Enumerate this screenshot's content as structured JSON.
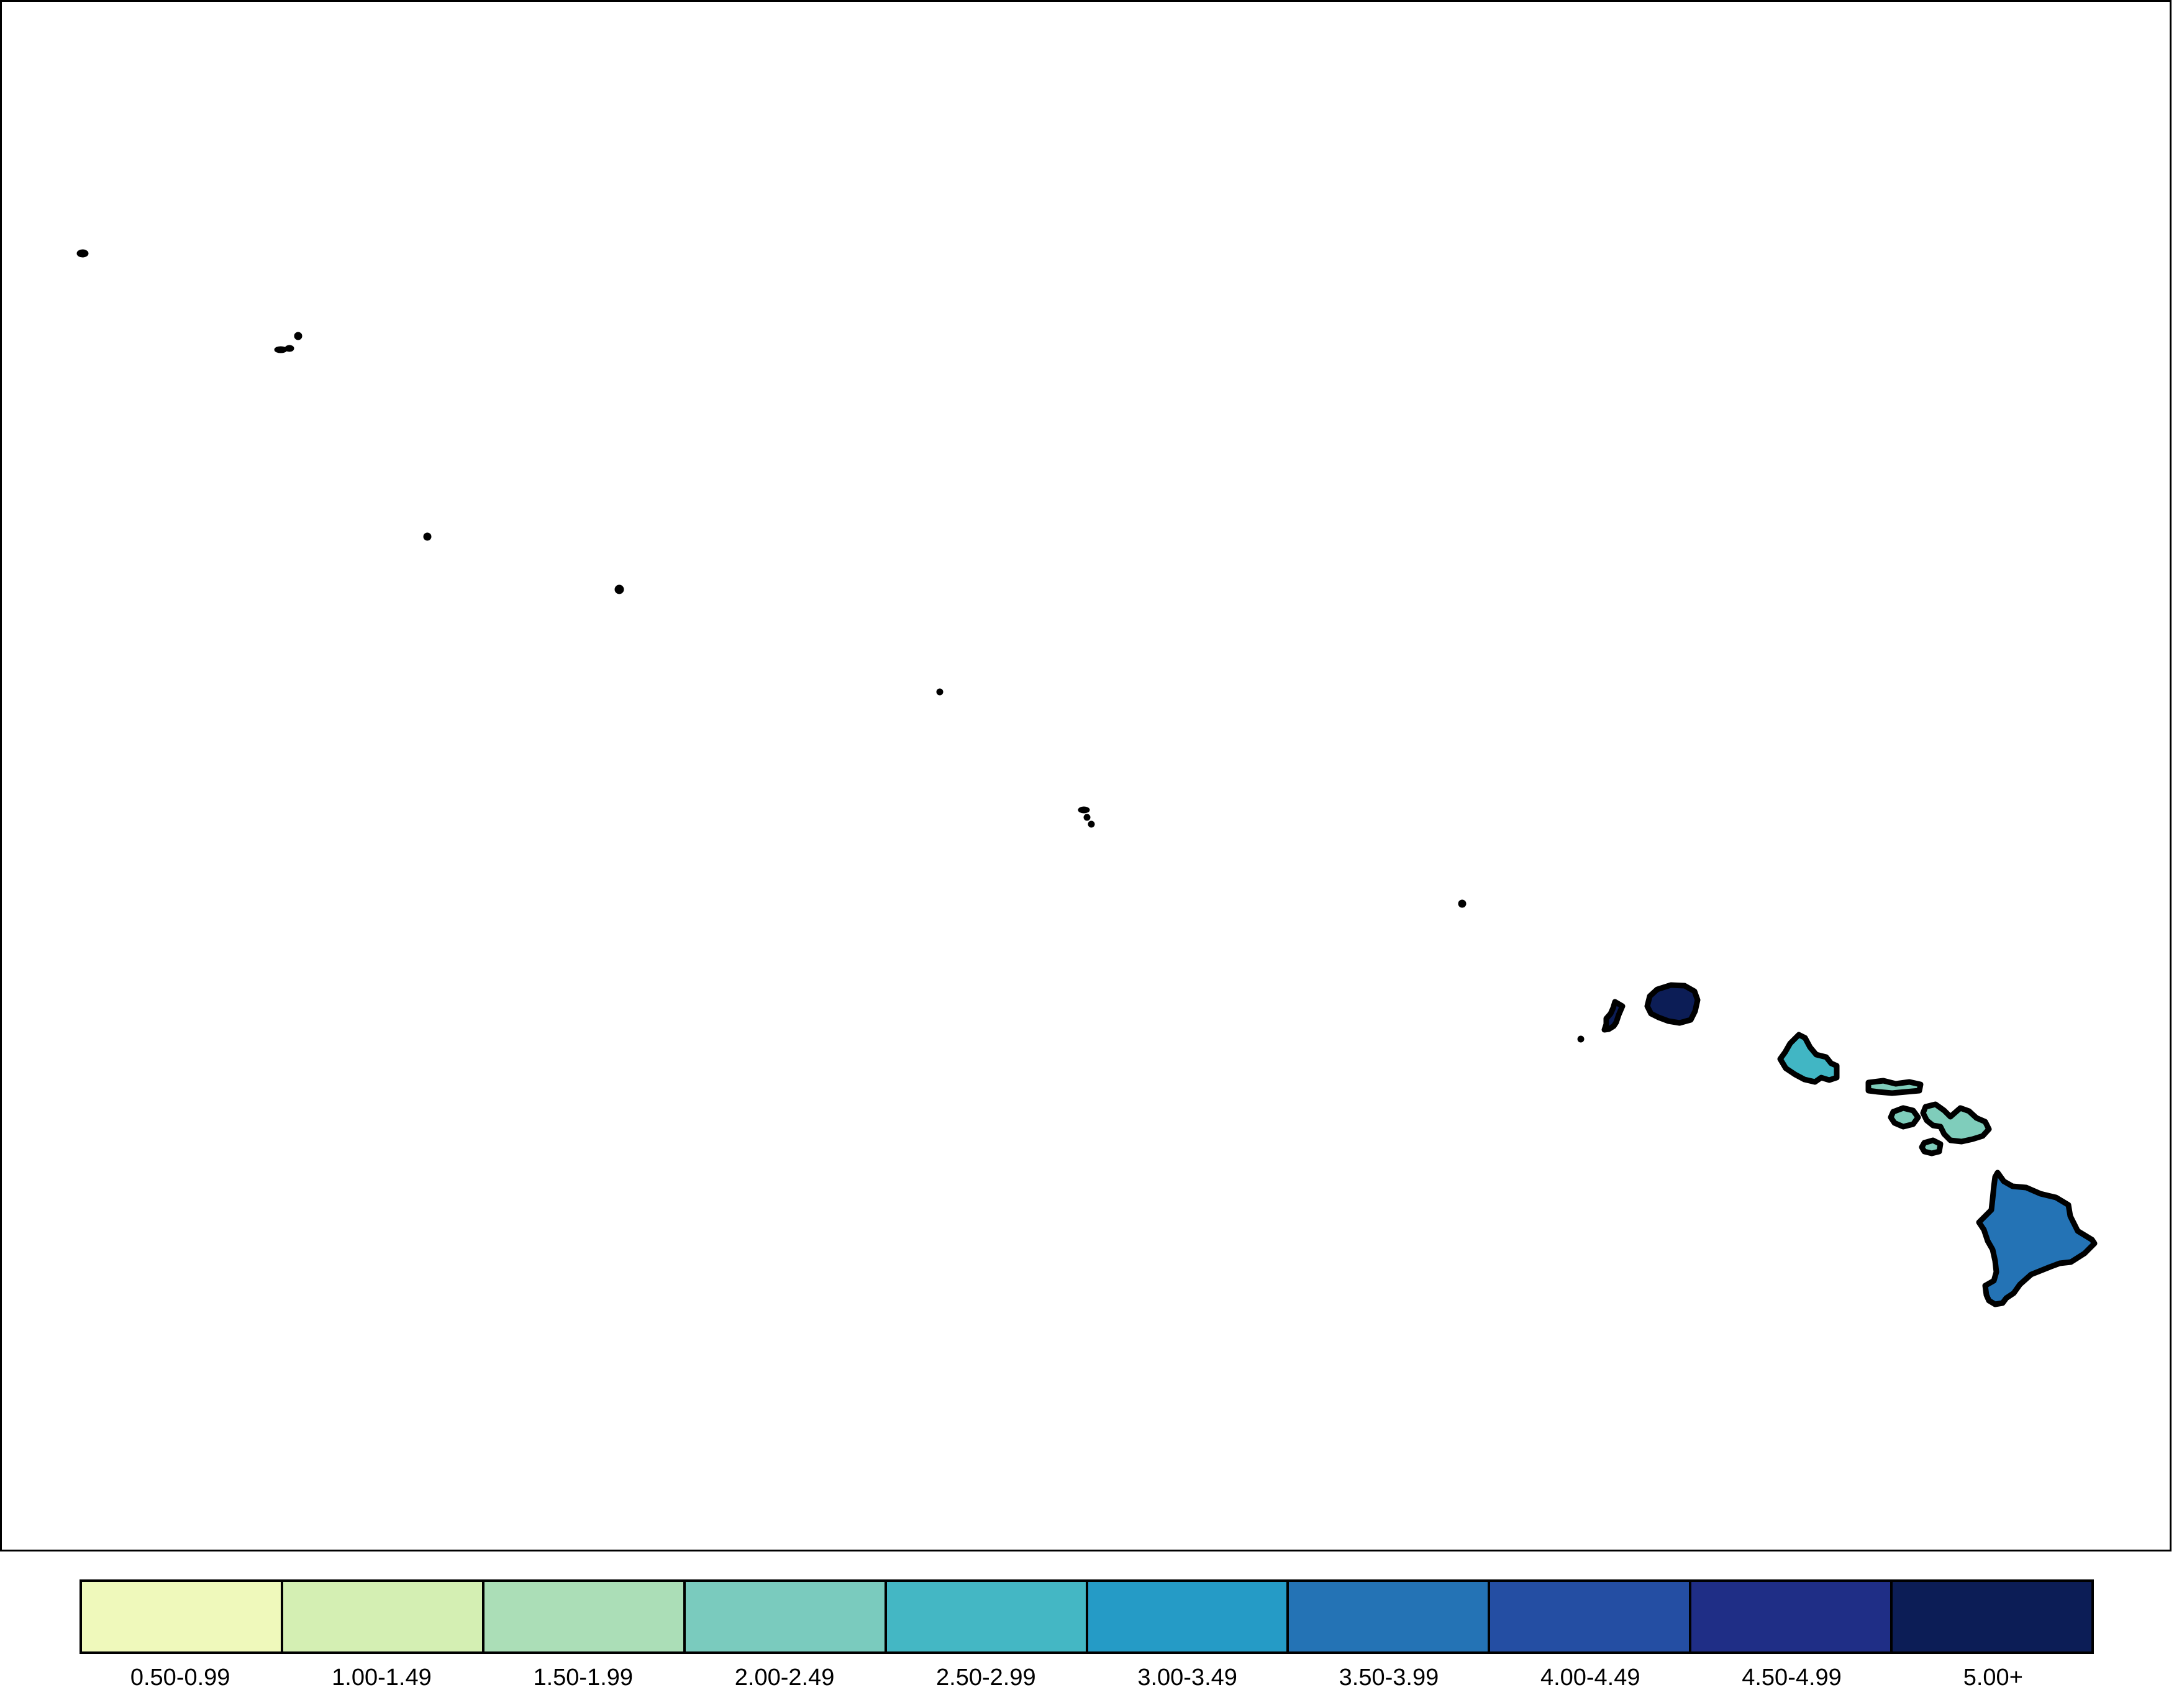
{
  "map": {
    "islands": [
      {
        "name": "Kure Atoll",
        "shape": "islet",
        "color": "#000000"
      },
      {
        "name": "Midway Atoll",
        "shape": "islet",
        "color": "#000000"
      },
      {
        "name": "Pearl and Hermes Atoll",
        "shape": "islet",
        "color": "#000000"
      },
      {
        "name": "Lisianski Island",
        "shape": "islet",
        "color": "#000000"
      },
      {
        "name": "Laysan Island",
        "shape": "islet",
        "color": "#000000"
      },
      {
        "name": "French Frigate Shoals",
        "shape": "islet",
        "color": "#000000"
      },
      {
        "name": "Necker Island",
        "shape": "islet",
        "color": "#000000"
      },
      {
        "name": "Nihoa",
        "shape": "islet",
        "color": "#000000"
      },
      {
        "name": "Niihau",
        "shape": "island",
        "color": "#0c1d56",
        "class": "5.00+"
      },
      {
        "name": "Kauai",
        "shape": "island",
        "color": "#0c1d56",
        "class": "5.00+"
      },
      {
        "name": "Oahu",
        "shape": "island",
        "color": "#41b6c4",
        "class": "2.50-2.99"
      },
      {
        "name": "Molokai",
        "shape": "island",
        "color": "#7fcdbb",
        "class": "2.00-2.49"
      },
      {
        "name": "Lanai",
        "shape": "island",
        "color": "#7fcdbb",
        "class": "2.00-2.49"
      },
      {
        "name": "Maui",
        "shape": "island",
        "color": "#7fcdbb",
        "class": "2.00-2.49"
      },
      {
        "name": "Kahoolawe",
        "shape": "island",
        "color": "#7fcdbb",
        "class": "2.00-2.49"
      },
      {
        "name": "Hawaii",
        "shape": "island",
        "color": "#2473b5",
        "class": "3.50-3.99"
      }
    ]
  },
  "legend": {
    "items": [
      {
        "label": "0.50-0.99",
        "color": "#eff9bb"
      },
      {
        "label": "1.00-1.49",
        "color": "#d4efb3"
      },
      {
        "label": "1.50-1.99",
        "color": "#abdeb7"
      },
      {
        "label": "2.00-2.49",
        "color": "#7acbbe"
      },
      {
        "label": "2.50-2.99",
        "color": "#44b7c4"
      },
      {
        "label": "3.00-3.49",
        "color": "#259bc6"
      },
      {
        "label": "3.50-3.99",
        "color": "#2473b5"
      },
      {
        "label": "4.00-4.49",
        "color": "#244ea3"
      },
      {
        "label": "4.50-4.99",
        "color": "#1f2e86"
      },
      {
        "label": "5.00+",
        "color": "#0c1d56"
      }
    ]
  }
}
